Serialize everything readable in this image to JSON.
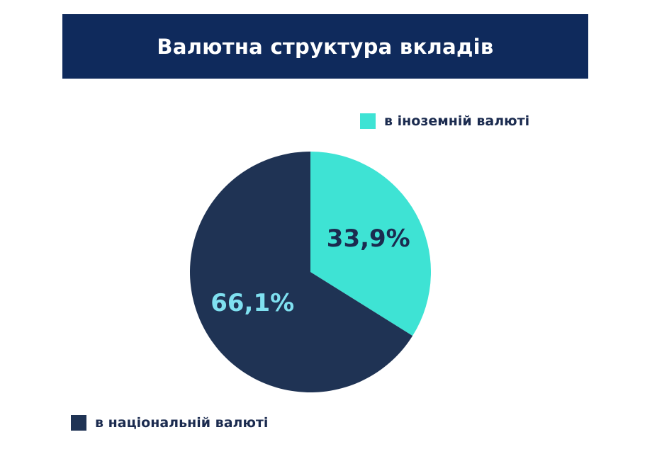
{
  "chart_data": {
    "type": "pie",
    "title": "Валютна структура вкладів",
    "slices": [
      {
        "label": "в іноземній валюті",
        "value": 33.9,
        "value_label": "33,9%",
        "color": "#3ee3d4",
        "text_color": "#1b2b4f"
      },
      {
        "label": "в національній валюті",
        "value": 66.1,
        "value_label": "66,1%",
        "color": "#1f3354",
        "text_color": "#7fe0f0"
      }
    ],
    "start_angle_deg": 0,
    "direction": "clockwise"
  },
  "colors": {
    "banner": "#0f2a5c",
    "title_text": "#ffffff",
    "legend_text": "#1b2b4f"
  }
}
